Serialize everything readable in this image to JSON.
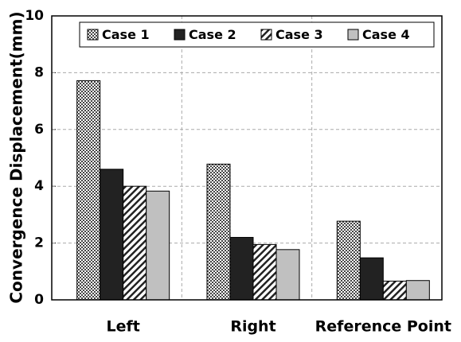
{
  "chart_data": {
    "type": "bar",
    "y_label": "Convergence Displacement(mm)",
    "categories": [
      "Left",
      "Right",
      "Reference Point"
    ],
    "series": [
      {
        "name": "Case 1",
        "color": "#444444",
        "pattern": "checker",
        "values": [
          7.72,
          4.78,
          2.77
        ]
      },
      {
        "name": "Case 2",
        "color": "#222222",
        "pattern": "solid",
        "values": [
          4.6,
          2.2,
          1.48
        ]
      },
      {
        "name": "Case 3",
        "color": "#222222",
        "pattern": "hatch",
        "values": [
          4.0,
          1.95,
          0.66
        ]
      },
      {
        "name": "Case 4",
        "color": "#c0c0c0",
        "pattern": "solid",
        "values": [
          3.83,
          1.77,
          0.68
        ]
      }
    ],
    "ylim": [
      0,
      10
    ],
    "yticks": [
      0,
      2,
      4,
      6,
      8,
      10
    ],
    "grid": true,
    "legend": "top"
  }
}
